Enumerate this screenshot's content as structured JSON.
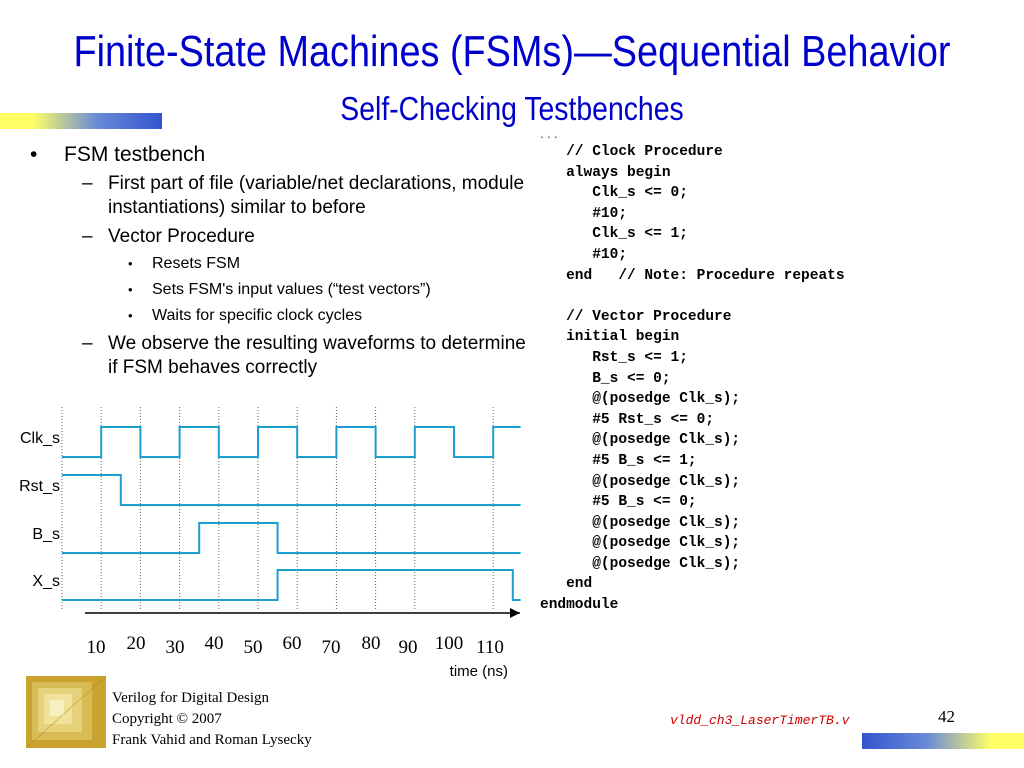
{
  "title": "Finite-State Machines (FSMs)—Sequential Behavior",
  "subtitle": "Self-Checking Testbenches",
  "ellipsis": "...",
  "bullets": {
    "b1": "FSM testbench",
    "b2a": "First part of file (variable/net declarations, module instantiations) similar to before",
    "b2b": "Vector Procedure",
    "b3a": "Resets FSM",
    "b3b": "Sets FSM's input values (“test vectors”)",
    "b3c": "Waits for specific clock cycles",
    "b2c": "We observe the resulting waveforms to determine if FSM behaves correctly"
  },
  "markers": {
    "l1": "•",
    "l2": "–",
    "l3": "•"
  },
  "code": [
    "   // Clock Procedure",
    "   always begin",
    "      Clk_s <= 0;",
    "      #10;",
    "      Clk_s <= 1;",
    "      #10;",
    "   end   // Note: Procedure repeats",
    "",
    "   // Vector Procedure",
    "   initial begin",
    "      Rst_s <= 1;",
    "      B_s <= 0;",
    "      @(posedge Clk_s);",
    "      #5 Rst_s <= 0;",
    "      @(posedge Clk_s);",
    "      #5 B_s <= 1;",
    "      @(posedge Clk_s);",
    "      #5 B_s <= 0;",
    "      @(posedge Clk_s);",
    "      @(posedge Clk_s);",
    "      @(posedge Clk_s);",
    "   end",
    "endmodule"
  ],
  "waveform": {
    "signals": [
      {
        "name": "Clk_s",
        "edges": [
          [
            0,
            0
          ],
          [
            10,
            1
          ],
          [
            20,
            0
          ],
          [
            30,
            1
          ],
          [
            40,
            0
          ],
          [
            50,
            1
          ],
          [
            60,
            0
          ],
          [
            70,
            1
          ],
          [
            80,
            0
          ],
          [
            90,
            1
          ],
          [
            100,
            0
          ],
          [
            110,
            1
          ]
        ]
      },
      {
        "name": "Rst_s",
        "edges": [
          [
            0,
            1
          ],
          [
            15,
            0
          ]
        ]
      },
      {
        "name": "B_s",
        "edges": [
          [
            0,
            0
          ],
          [
            35,
            1
          ],
          [
            55,
            0
          ]
        ]
      },
      {
        "name": "X_s",
        "edges": [
          [
            0,
            0
          ],
          [
            55,
            1
          ],
          [
            115,
            0
          ]
        ]
      }
    ],
    "time_labels": [
      "10",
      "20",
      "30",
      "40",
      "50",
      "60",
      "70",
      "80",
      "90",
      "100",
      "110"
    ],
    "time_values": [
      10,
      20,
      30,
      40,
      50,
      60,
      70,
      80,
      90,
      100,
      110
    ],
    "axis_label": "time (ns)",
    "t_end": 117,
    "signal_color": "#1a9fd0"
  },
  "footer": {
    "line1": "Verilog for Digital Design",
    "line2": "Copyright © 2007",
    "line3": "Frank Vahid and Roman Lysecky"
  },
  "file_name": "vldd_ch3_LaserTimerTB.v",
  "page_number": "42",
  "colors": {
    "title": "#0000cc",
    "file_name": "#cc0000"
  }
}
